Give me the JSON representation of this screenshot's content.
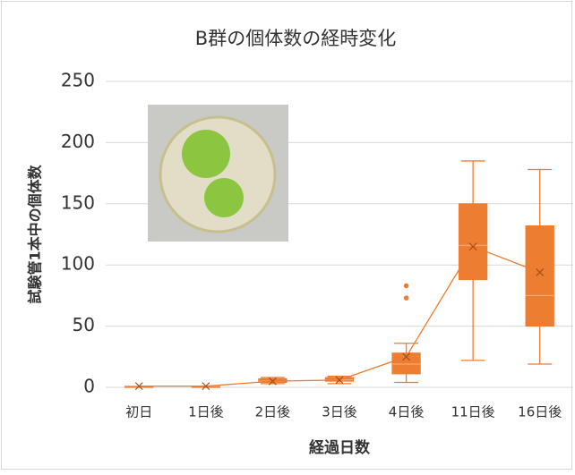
{
  "chart_data": {
    "type": "box",
    "title": "B群の個体数の経時変化",
    "y_label": "試験管1本中の個体数",
    "x_label": "経過日数",
    "categories": [
      "初日",
      "1日後",
      "2日後",
      "3日後",
      "4日後",
      "11日後",
      "16日後"
    ],
    "boxes": [
      {
        "min": 1,
        "q1": 1,
        "median": 1,
        "q3": 1,
        "max": 1,
        "mean": 1,
        "outliers": []
      },
      {
        "min": 1,
        "q1": 1,
        "median": 1,
        "q3": 1,
        "max": 1,
        "mean": 1,
        "outliers": []
      },
      {
        "min": 3,
        "q1": 4,
        "median": 5,
        "q3": 7,
        "max": 8,
        "mean": 5,
        "outliers": []
      },
      {
        "min": 3,
        "q1": 5,
        "median": 6,
        "q3": 8,
        "max": 9,
        "mean": 6,
        "outliers": []
      },
      {
        "min": 4,
        "q1": 11,
        "median": 19,
        "q3": 28,
        "max": 36,
        "mean": 25,
        "outliers": [
          73,
          83
        ]
      },
      {
        "min": 22,
        "q1": 88,
        "median": 116,
        "q3": 150,
        "max": 185,
        "mean": 115,
        "outliers": []
      },
      {
        "min": 19,
        "q1": 50,
        "median": 75,
        "q3": 132,
        "max": 178,
        "mean": 94,
        "outliers": []
      }
    ],
    "color": "#ed7d31",
    "ylim": [
      0,
      250
    ],
    "yticks": [
      0,
      50,
      100,
      150,
      200,
      250
    ],
    "grid": true
  }
}
